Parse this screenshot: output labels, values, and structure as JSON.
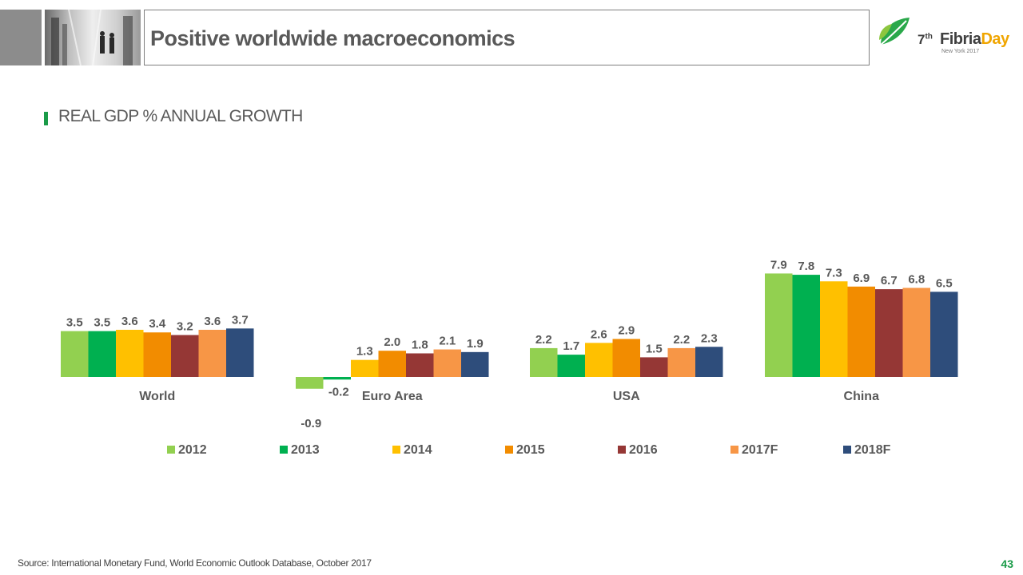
{
  "header": {
    "title": "Positive worldwide macroeconomics"
  },
  "logo": {
    "edition": "7",
    "edition_suffix": "th",
    "name_part1": "Fibria",
    "name_part2": "Day",
    "subtitle": "New York 2017",
    "colors": {
      "leaf": "#2aa84a",
      "day": "#f0a500"
    }
  },
  "section": {
    "title": "REAL GDP % ANNUAL GROWTH"
  },
  "chart_data": {
    "type": "bar",
    "categories": [
      "World",
      "Euro Area",
      "USA",
      "China"
    ],
    "series": [
      {
        "name": "2012",
        "color": "#92d050",
        "values": [
          3.5,
          -0.9,
          2.2,
          7.9
        ]
      },
      {
        "name": "2013",
        "color": "#00b050",
        "values": [
          3.5,
          -0.2,
          1.7,
          7.8
        ]
      },
      {
        "name": "2014",
        "color": "#ffc000",
        "values": [
          3.6,
          1.3,
          2.6,
          7.3
        ]
      },
      {
        "name": "2015",
        "color": "#f28c00",
        "values": [
          3.4,
          2.0,
          2.9,
          6.9
        ]
      },
      {
        "name": "2016",
        "color": "#953735",
        "values": [
          3.2,
          1.8,
          1.5,
          6.7
        ]
      },
      {
        "name": "2017F",
        "color": "#f79646",
        "values": [
          3.6,
          2.1,
          2.2,
          6.8
        ]
      },
      {
        "name": "2018F",
        "color": "#2e4d7b",
        "values": [
          3.7,
          1.9,
          2.3,
          6.5
        ]
      }
    ],
    "value_format": "one_decimal",
    "legend_position": "bottom",
    "grid": false
  },
  "footer": {
    "source": "Source: International Monetary Fund, World Economic Outlook Database, October 2017",
    "page_number": "43"
  }
}
